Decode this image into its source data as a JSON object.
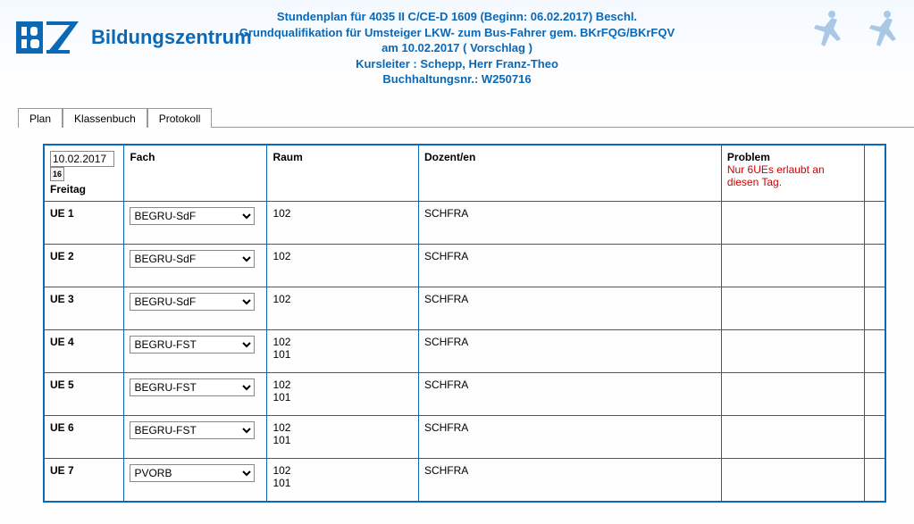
{
  "brand": {
    "name": "Bildungszentrum",
    "logo_primary": "#0b68b5",
    "logo_accent": "#ffffff"
  },
  "header": {
    "line1": "Stundenplan für 4035 II C/CE-D 1609 (Beginn: 06.02.2017) Beschl.",
    "line2": "Grundqualifikation für Umsteiger LKW- zum Bus-Fahrer gem. BKrFQG/BKrFQV",
    "line3": "am 10.02.2017 ( Vorschlag )",
    "line4": "Kursleiter :  Schepp, Herr Franz-Theo",
    "line5": "Buchhaltungsnr.: W250716"
  },
  "tabs": {
    "items": [
      {
        "label": "Plan",
        "active": true
      },
      {
        "label": "Klassenbuch",
        "active": false
      },
      {
        "label": "Protokoll",
        "active": false
      }
    ]
  },
  "columns": {
    "date_value": "10.02.2017",
    "date_button": "16",
    "weekday": "Freitag",
    "fach": "Fach",
    "raum": "Raum",
    "dozent": "Dozent/en",
    "problem": "Problem",
    "problem_note": "Nur 6UEs erlaubt an diesen Tag."
  },
  "rows": [
    {
      "ue": "UE 1",
      "fach": "BEGRU-SdF",
      "raum": "102",
      "dozent": "SCHFRA"
    },
    {
      "ue": "UE 2",
      "fach": "BEGRU-SdF",
      "raum": "102",
      "dozent": "SCHFRA"
    },
    {
      "ue": "UE 3",
      "fach": "BEGRU-SdF",
      "raum": "102",
      "dozent": "SCHFRA"
    },
    {
      "ue": "UE 4",
      "fach": "BEGRU-FST",
      "raum": "102\n101",
      "dozent": "SCHFRA"
    },
    {
      "ue": "UE 5",
      "fach": "BEGRU-FST",
      "raum": "102\n101",
      "dozent": "SCHFRA"
    },
    {
      "ue": "UE 6",
      "fach": "BEGRU-FST",
      "raum": "102\n101",
      "dozent": "SCHFRA"
    },
    {
      "ue": "UE 7",
      "fach": "PVORB",
      "raum": "102\n101",
      "dozent": "SCHFRA"
    }
  ],
  "colors": {
    "brand": "#0b68b5",
    "border": "#0b68b5",
    "error": "#d00000",
    "bg_top": "#f4f9ff",
    "runner": "#a9c8e6"
  }
}
